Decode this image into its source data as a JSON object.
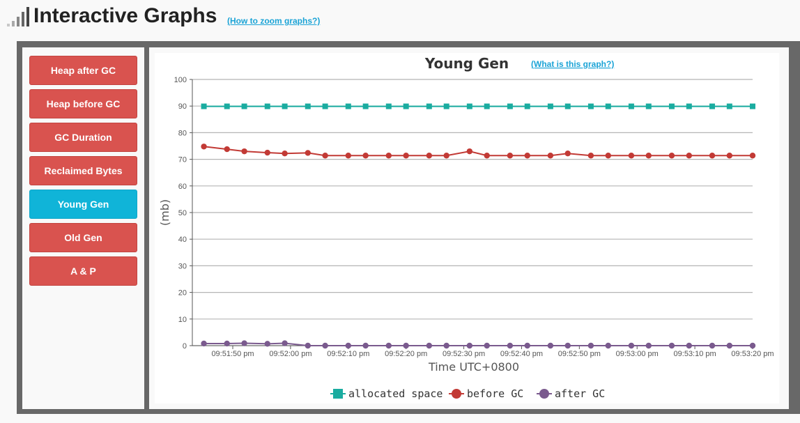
{
  "header": {
    "title": "Interactive Graphs",
    "zoom_link": "(How to zoom graphs?)",
    "icon": "signal-bars-icon"
  },
  "sidebar": {
    "buttons": [
      {
        "label": "Heap after GC",
        "active": false
      },
      {
        "label": "Heap before GC",
        "active": false
      },
      {
        "label": "GC Duration",
        "active": false
      },
      {
        "label": "Reclaimed Bytes",
        "active": false
      },
      {
        "label": "Young Gen",
        "active": true
      },
      {
        "label": "Old Gen",
        "active": false
      },
      {
        "label": "A & P",
        "active": false
      }
    ],
    "button_color": "#d9534f",
    "active_color": "#10b4d8"
  },
  "chart_data": {
    "type": "line",
    "title": "Young Gen",
    "info_link": "(What is this graph?)",
    "xlabel": "Time UTC+0800",
    "ylabel": "(mb)",
    "ylim": [
      0,
      100
    ],
    "yticks": [
      0,
      10,
      20,
      30,
      40,
      50,
      60,
      70,
      80,
      90,
      100
    ],
    "xlim": [
      "09:51:43",
      "09:53:20"
    ],
    "xticks": [
      {
        "t": "09:51:50",
        "label": "09:51:50 pm"
      },
      {
        "t": "09:52:00",
        "label": "09:52:00 pm"
      },
      {
        "t": "09:52:10",
        "label": "09:52:10 pm"
      },
      {
        "t": "09:52:20",
        "label": "09:52:20 pm"
      },
      {
        "t": "09:52:30",
        "label": "09:52:30 pm"
      },
      {
        "t": "09:52:40",
        "label": "09:52:40 pm"
      },
      {
        "t": "09:52:50",
        "label": "09:52:50 pm"
      },
      {
        "t": "09:53:00",
        "label": "09:53:00 pm"
      },
      {
        "t": "09:53:10",
        "label": "09:53:10 pm"
      },
      {
        "t": "09:53:20",
        "label": "09:53:20 pm"
      }
    ],
    "x": [
      "09:51:45",
      "09:51:49",
      "09:51:52",
      "09:51:56",
      "09:51:59",
      "09:52:03",
      "09:52:06",
      "09:52:10",
      "09:52:13",
      "09:52:17",
      "09:52:20",
      "09:52:24",
      "09:52:27",
      "09:52:31",
      "09:52:34",
      "09:52:38",
      "09:52:41",
      "09:52:45",
      "09:52:48",
      "09:52:52",
      "09:52:55",
      "09:52:59",
      "09:53:02",
      "09:53:06",
      "09:53:09",
      "09:53:13",
      "09:53:16",
      "09:53:20"
    ],
    "grid": true,
    "legend_position": "bottom",
    "series": [
      {
        "name": "allocated space",
        "color": "#1aaca0",
        "marker": "square",
        "values": [
          89.9,
          89.9,
          89.9,
          89.9,
          89.9,
          89.9,
          89.9,
          89.9,
          89.9,
          89.9,
          89.9,
          89.9,
          89.9,
          89.9,
          89.9,
          89.9,
          89.9,
          89.9,
          89.9,
          89.9,
          89.9,
          89.9,
          89.9,
          89.9,
          89.9,
          89.9,
          89.9,
          89.9
        ]
      },
      {
        "name": "before GC",
        "color": "#c23a35",
        "marker": "circle",
        "values": [
          74.8,
          73.8,
          73.0,
          72.5,
          72.2,
          72.4,
          71.4,
          71.4,
          71.4,
          71.4,
          71.4,
          71.4,
          71.4,
          73.0,
          71.4,
          71.4,
          71.4,
          71.4,
          72.2,
          71.4,
          71.4,
          71.4,
          71.4,
          71.4,
          71.4,
          71.4,
          71.4,
          71.4
        ]
      },
      {
        "name": "after GC",
        "color": "#7a5a8e",
        "marker": "circle",
        "values": [
          0.8,
          0.8,
          0.9,
          0.7,
          0.9,
          0.0,
          0.0,
          0.0,
          0.0,
          0.0,
          0.0,
          0.0,
          0.0,
          0.0,
          0.0,
          0.0,
          0.0,
          0.0,
          0.0,
          0.0,
          0.0,
          0.0,
          0.0,
          0.0,
          0.0,
          0.0,
          0.0,
          0.0
        ]
      }
    ]
  }
}
